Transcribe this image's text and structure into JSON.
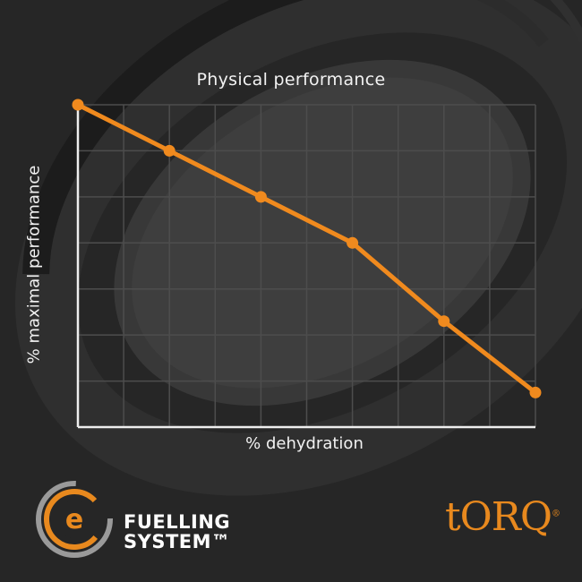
{
  "colors": {
    "background": "#262626",
    "grid": "#4d4d4d",
    "axis": "#eeeeee",
    "series": "#f08a1e",
    "text": "#f2f2f2",
    "brand_orange": "#e8891e"
  },
  "chart_data": {
    "type": "line",
    "title": "Physical performance",
    "xlabel": "% dehydration",
    "ylabel": "% maximal performance",
    "grid": true,
    "legend": "none",
    "x": [
      0,
      2,
      4,
      6,
      8,
      10
    ],
    "xlim": [
      0,
      10
    ],
    "ylim": [
      0,
      7
    ],
    "series": [
      {
        "values": [
          7.0,
          6.0,
          5.0,
          4.0,
          2.3,
          0.75
        ]
      }
    ]
  },
  "branding": {
    "fuelling_line1": "FUELLING",
    "fuelling_line2": "SYSTEM™",
    "e_logo_icon": "e-circle-logo-icon",
    "torq_logo": "tORQ"
  }
}
